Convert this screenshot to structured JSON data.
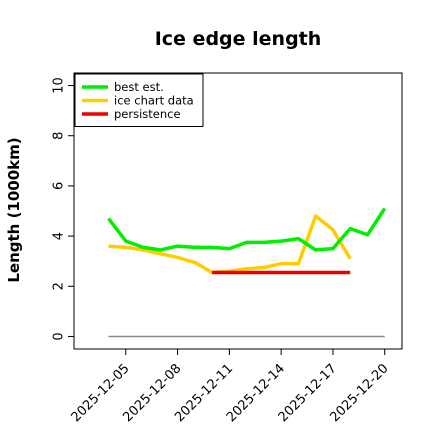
{
  "chart_data": {
    "type": "line",
    "title": "Ice edge length",
    "xlabel": "",
    "ylabel": "Length (1000km)",
    "ylim": [
      -0.5,
      10.5
    ],
    "xlim": [
      "2025-12-02",
      "2025-12-21"
    ],
    "y_ticks": [
      0,
      2,
      4,
      6,
      8,
      10
    ],
    "x_ticks": [
      "2025-12-05",
      "2025-12-08",
      "2025-12-11",
      "2025-12-14",
      "2025-12-17",
      "2025-12-20"
    ],
    "legend_position": "top-left",
    "series": [
      {
        "name": "best est.",
        "color": "#00ee00",
        "x": [
          "2025-12-04",
          "2025-12-05",
          "2025-12-06",
          "2025-12-07",
          "2025-12-08",
          "2025-12-09",
          "2025-12-10",
          "2025-12-11",
          "2025-12-12",
          "2025-12-13",
          "2025-12-14",
          "2025-12-15",
          "2025-12-16",
          "2025-12-17",
          "2025-12-18",
          "2025-12-19",
          "2025-12-20"
        ],
        "values": [
          4.7,
          3.8,
          3.55,
          3.45,
          3.6,
          3.55,
          3.55,
          3.5,
          3.75,
          3.75,
          3.8,
          3.9,
          3.45,
          3.5,
          4.3,
          4.05,
          5.1
        ]
      },
      {
        "name": "ice chart data",
        "color": "#ffcc00",
        "x": [
          "2025-12-04",
          "2025-12-05",
          "2025-12-06",
          "2025-12-07",
          "2025-12-08",
          "2025-12-09",
          "2025-12-10",
          "2025-12-11",
          "2025-12-12",
          "2025-12-13",
          "2025-12-14",
          "2025-12-15",
          "2025-12-16",
          "2025-12-17",
          "2025-12-18"
        ],
        "values": [
          3.6,
          3.55,
          3.45,
          3.3,
          3.15,
          2.95,
          2.55,
          2.6,
          2.7,
          2.75,
          2.9,
          2.9,
          4.8,
          4.25,
          3.1
        ]
      },
      {
        "name": "persistence",
        "color": "#ee0000",
        "x": [
          "2025-12-10",
          "2025-12-18"
        ],
        "values": [
          2.55,
          2.55
        ]
      },
      {
        "color": "#888888",
        "x": [
          "2025-12-04",
          "2025-12-20"
        ],
        "values": [
          0,
          0
        ]
      }
    ]
  }
}
